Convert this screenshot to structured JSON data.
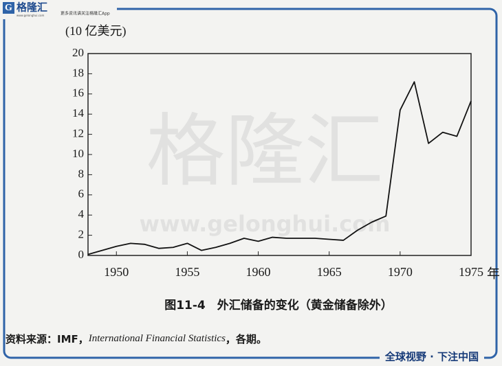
{
  "header": {
    "logo_text": "格隆汇",
    "logo_url": "www.gelonghui.com",
    "logo_subtext": "更多资讯请关注格隆汇App"
  },
  "watermark": {
    "text": "格隆汇",
    "url": "www.gelonghui.com"
  },
  "chart_data": {
    "type": "line",
    "y_label": "(10 亿美元)",
    "x_label": "年",
    "x": [
      1948,
      1950,
      1951,
      1952,
      1953,
      1954,
      1955,
      1956,
      1957,
      1958,
      1959,
      1960,
      1961,
      1962,
      1963,
      1964,
      1965,
      1966,
      1967,
      1968,
      1969,
      1970,
      1971,
      1972,
      1973,
      1974,
      1975
    ],
    "series": [
      {
        "color": "#111111",
        "values": [
          0.1,
          0.9,
          1.2,
          1.1,
          0.7,
          0.8,
          1.2,
          0.5,
          0.8,
          1.2,
          1.7,
          1.4,
          1.8,
          1.7,
          1.7,
          1.7,
          1.6,
          1.5,
          2.5,
          3.3,
          3.9,
          14.4,
          17.2,
          11.1,
          12.2,
          11.8,
          15.3
        ]
      }
    ],
    "xlim": [
      1948,
      1975
    ],
    "xticks": [
      1950,
      1955,
      1960,
      1965,
      1970,
      1975
    ],
    "ylim": [
      0,
      20
    ],
    "yticks": [
      0,
      2,
      4,
      6,
      8,
      10,
      12,
      14,
      16,
      18,
      20
    ],
    "grid": false
  },
  "caption": "图11-4　外汇储备的变化（黄金储备除外）",
  "source": {
    "prefix": "资料来源：IMF，",
    "publication": "International Financial Statistics",
    "suffix": "，各期。"
  },
  "footer": {
    "slogan": "全球视野 · 下注中国"
  }
}
